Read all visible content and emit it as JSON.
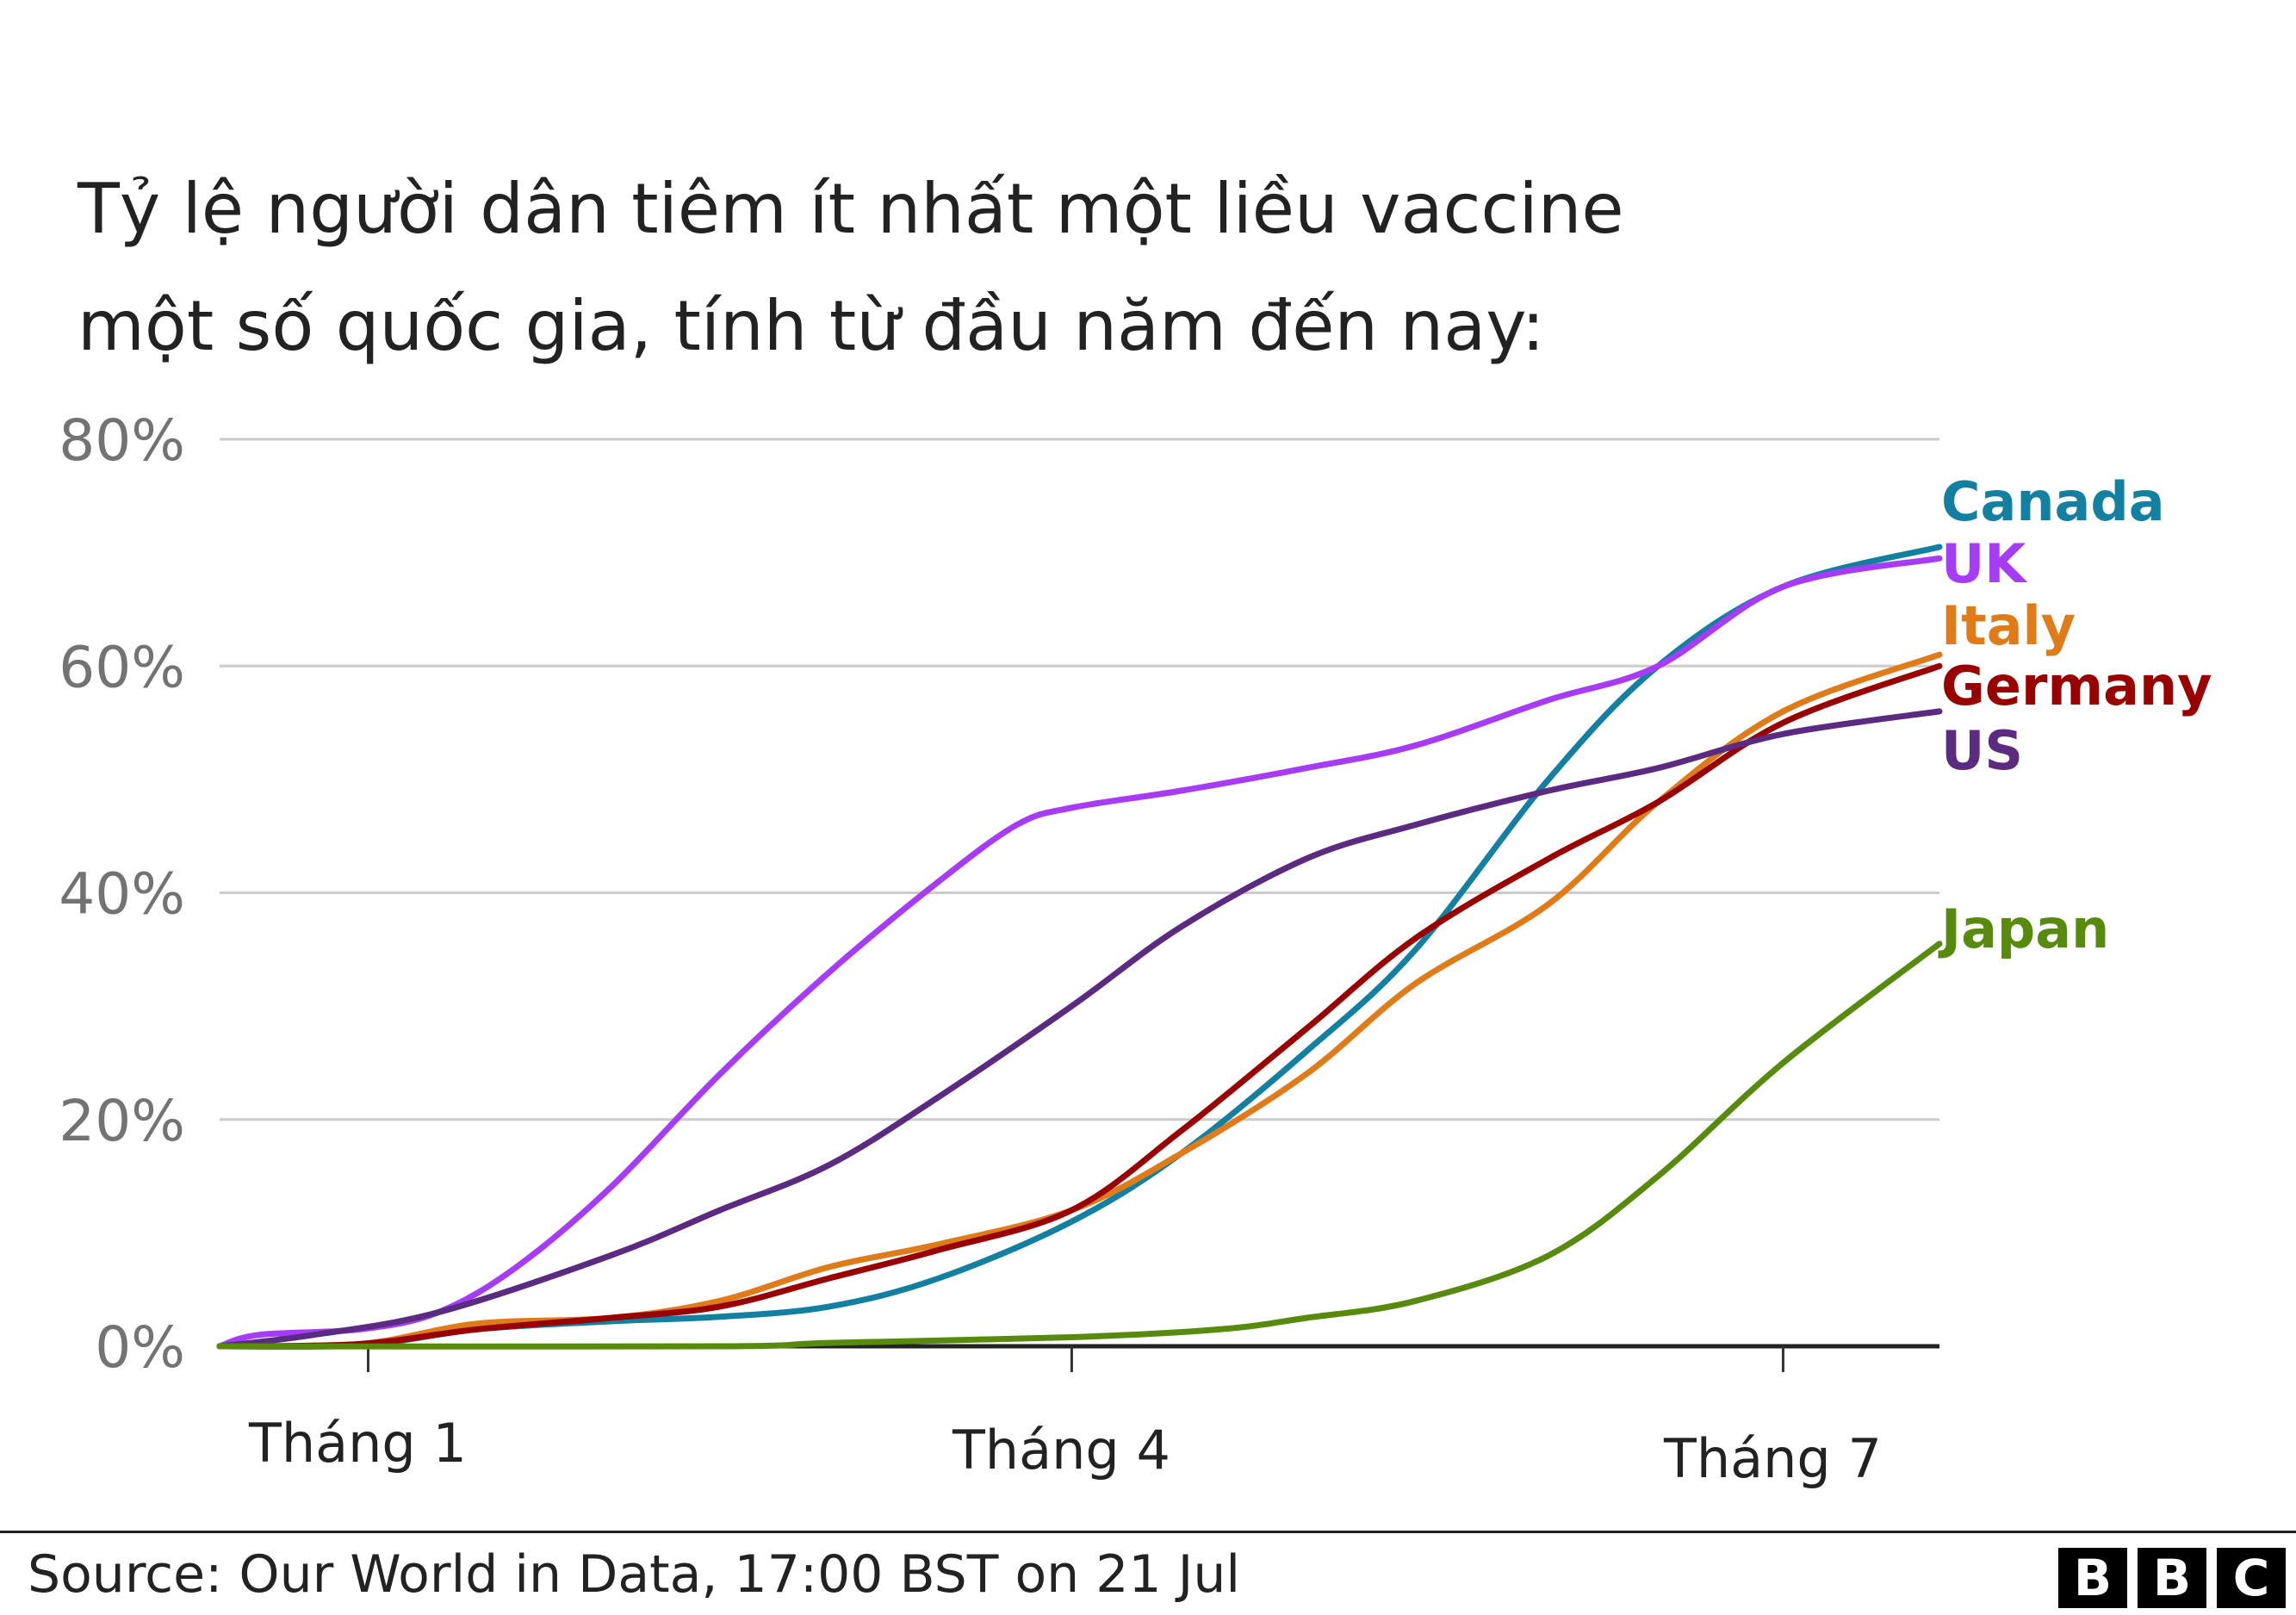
{
  "title_lines": [
    "Tỷ lệ người dân tiêm ít nhất một liều vaccine",
    "một số quốc gia, tính từ đầu năm đến nay:"
  ],
  "source": "Source: Our World in Data, 17:00 BST on 21 Jul",
  "brand": {
    "logo_letters": [
      "B",
      "B",
      "C"
    ]
  },
  "chart_data": {
    "type": "line",
    "title": "Tỷ lệ người dân tiêm ít nhất một liều vaccine một số quốc gia, tính từ đầu năm đến nay:",
    "xlabel": "",
    "ylabel": "",
    "xlim": [
      "2020-12-13",
      "2021-07-21"
    ],
    "ylim": [
      0,
      80
    ],
    "y_ticks": [
      {
        "value": 0,
        "label": "0%"
      },
      {
        "value": 20,
        "label": "20%"
      },
      {
        "value": 40,
        "label": "40%"
      },
      {
        "value": 60,
        "label": "60%"
      },
      {
        "value": 80,
        "label": "80%"
      }
    ],
    "x_ticks": [
      {
        "value": "2021-01-01",
        "label": "Tháng 1"
      },
      {
        "value": "2021-04-01",
        "label": "Tháng 4"
      },
      {
        "value": "2021-07-01",
        "label": "Tháng 7"
      }
    ],
    "grid": true,
    "legend": "end-of-line labels",
    "series": [
      {
        "name": "Canada",
        "color": "#1380a1",
        "points": [
          [
            "2020-12-13",
            0
          ],
          [
            "2020-12-31",
            0.1
          ],
          [
            "2021-01-15",
            1.5
          ],
          [
            "2021-02-01",
            2.2
          ],
          [
            "2021-02-15",
            2.6
          ],
          [
            "2021-03-01",
            3.5
          ],
          [
            "2021-03-15",
            6
          ],
          [
            "2021-04-01",
            11
          ],
          [
            "2021-04-15",
            17
          ],
          [
            "2021-05-01",
            26
          ],
          [
            "2021-05-15",
            35
          ],
          [
            "2021-06-01",
            50
          ],
          [
            "2021-06-15",
            60
          ],
          [
            "2021-07-01",
            67
          ],
          [
            "2021-07-21",
            70.5
          ]
        ]
      },
      {
        "name": "UK",
        "color": "#a63cf7",
        "points": [
          [
            "2020-12-13",
            0
          ],
          [
            "2020-12-18",
            1
          ],
          [
            "2020-12-31",
            1.5
          ],
          [
            "2021-01-10",
            3
          ],
          [
            "2021-01-20",
            7
          ],
          [
            "2021-02-01",
            14
          ],
          [
            "2021-02-15",
            24
          ],
          [
            "2021-03-01",
            33
          ],
          [
            "2021-03-15",
            41
          ],
          [
            "2021-03-25",
            46
          ],
          [
            "2021-04-01",
            47.5
          ],
          [
            "2021-04-15",
            49
          ],
          [
            "2021-05-01",
            51
          ],
          [
            "2021-05-15",
            53
          ],
          [
            "2021-06-01",
            57
          ],
          [
            "2021-06-15",
            60
          ],
          [
            "2021-07-01",
            67
          ],
          [
            "2021-07-21",
            69.5
          ]
        ]
      },
      {
        "name": "Italy",
        "color": "#e07b1a",
        "points": [
          [
            "2020-12-13",
            0
          ],
          [
            "2020-12-31",
            0.2
          ],
          [
            "2021-01-15",
            2
          ],
          [
            "2021-02-01",
            2.5
          ],
          [
            "2021-02-15",
            4
          ],
          [
            "2021-03-01",
            7
          ],
          [
            "2021-03-15",
            9
          ],
          [
            "2021-04-01",
            12
          ],
          [
            "2021-04-15",
            17
          ],
          [
            "2021-05-01",
            24
          ],
          [
            "2021-05-15",
            32
          ],
          [
            "2021-06-01",
            39
          ],
          [
            "2021-06-15",
            48
          ],
          [
            "2021-07-01",
            56
          ],
          [
            "2021-07-21",
            61
          ]
        ]
      },
      {
        "name": "Germany",
        "color": "#990000",
        "points": [
          [
            "2020-12-13",
            0
          ],
          [
            "2020-12-31",
            0.2
          ],
          [
            "2021-01-15",
            1.5
          ],
          [
            "2021-02-01",
            2.5
          ],
          [
            "2021-02-15",
            3.5
          ],
          [
            "2021-03-01",
            6
          ],
          [
            "2021-03-15",
            8.5
          ],
          [
            "2021-04-01",
            12
          ],
          [
            "2021-04-15",
            19
          ],
          [
            "2021-05-01",
            28
          ],
          [
            "2021-05-15",
            36
          ],
          [
            "2021-06-01",
            43
          ],
          [
            "2021-06-15",
            48
          ],
          [
            "2021-07-01",
            55
          ],
          [
            "2021-07-21",
            60
          ]
        ]
      },
      {
        "name": "US",
        "color": "#5a2b81",
        "points": [
          [
            "2020-12-13",
            0
          ],
          [
            "2020-12-25",
            1
          ],
          [
            "2021-01-10",
            3
          ],
          [
            "2021-02-01",
            8
          ],
          [
            "2021-02-15",
            12
          ],
          [
            "2021-03-01",
            16
          ],
          [
            "2021-03-15",
            22
          ],
          [
            "2021-04-01",
            30
          ],
          [
            "2021-04-15",
            37
          ],
          [
            "2021-05-01",
            43
          ],
          [
            "2021-05-15",
            46
          ],
          [
            "2021-06-01",
            49
          ],
          [
            "2021-06-15",
            51
          ],
          [
            "2021-07-01",
            54
          ],
          [
            "2021-07-21",
            56
          ]
        ]
      },
      {
        "name": "Japan",
        "color": "#588a0e",
        "points": [
          [
            "2020-12-13",
            0
          ],
          [
            "2021-02-15",
            0
          ],
          [
            "2021-03-01",
            0.3
          ],
          [
            "2021-04-01",
            0.8
          ],
          [
            "2021-04-20",
            1.5
          ],
          [
            "2021-05-01",
            2.5
          ],
          [
            "2021-05-15",
            4
          ],
          [
            "2021-06-01",
            8
          ],
          [
            "2021-06-15",
            15
          ],
          [
            "2021-07-01",
            25
          ],
          [
            "2021-07-21",
            35.5
          ]
        ]
      }
    ]
  }
}
